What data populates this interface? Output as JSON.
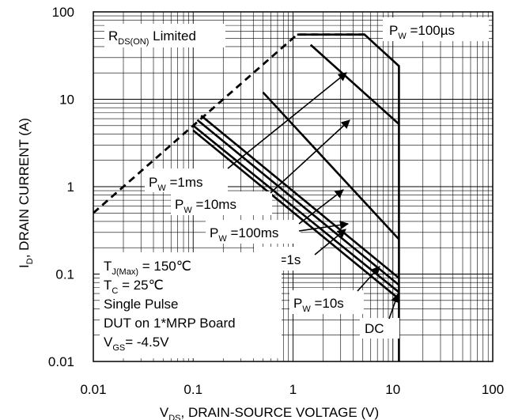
{
  "chart_data": {
    "type": "line",
    "x_scale": "log",
    "y_scale": "log",
    "xlim": [
      0.01,
      100
    ],
    "ylim": [
      0.01,
      100
    ],
    "grid": true,
    "x_ticks": [
      "0.01",
      "0.1",
      "1",
      "10",
      "100"
    ],
    "y_ticks": [
      "0.01",
      "0.1",
      "1",
      "10",
      "100"
    ],
    "xlabel": {
      "main": "V",
      "sub": "DS",
      "rest": ", DRAIN-SOURCE VOLTAGE (V)"
    },
    "ylabel": {
      "main": "I",
      "sub": "D",
      "rest": ", DRAIN CURRENT (A)"
    },
    "rds_label": {
      "main": "R",
      "sub": "DS(ON)",
      "rest": " Limited"
    },
    "conditions": [
      {
        "main": "T",
        "sub": "J(Max)",
        "rest": " = 150℃"
      },
      {
        "main": "T",
        "sub": "C",
        "rest": " = 25℃"
      },
      {
        "main": "Single Pulse",
        "sub": "",
        "rest": ""
      },
      {
        "main": "DUT on 1*MRP Board",
        "sub": "",
        "rest": ""
      },
      {
        "main": "V",
        "sub": "GS",
        "rest": "= -4.5V"
      }
    ],
    "limit_line": {
      "dashed": true,
      "x": [
        0.01,
        1.1,
        5.2
      ],
      "y": [
        0.5,
        55,
        55
      ]
    },
    "series": [
      {
        "name": "P_W=100µs",
        "label": {
          "main": "P",
          "sub": "W",
          "rest": " =100µs"
        },
        "x": [
          1.1,
          5.2,
          11.5,
          11.5
        ],
        "y": [
          55,
          55,
          24,
          0.01
        ]
      },
      {
        "name": "P_W=1ms",
        "label": {
          "main": "P",
          "sub": "W",
          "rest": " =1ms"
        },
        "x": [
          1.5,
          11.5
        ],
        "y": [
          42,
          5.2
        ]
      },
      {
        "name": "P_W=10ms",
        "label": {
          "main": "P",
          "sub": "W",
          "rest": " =10ms"
        },
        "x": [
          0.5,
          11.5
        ],
        "y": [
          12,
          0.25
        ]
      },
      {
        "name": "P_W=100ms",
        "label": {
          "main": "P",
          "sub": "W",
          "rest": " =100ms"
        },
        "x": [
          0.12,
          11.5
        ],
        "y": [
          6.5,
          0.09
        ]
      },
      {
        "name": "P_W=1s",
        "label": {
          "main": "P",
          "sub": "W",
          "rest": " =1s"
        },
        "x": [
          0.11,
          11.5
        ],
        "y": [
          5.8,
          0.075
        ]
      },
      {
        "name": "P_W=10s",
        "label": {
          "main": "P",
          "sub": "W",
          "rest": " =10s"
        },
        "x": [
          0.1,
          11.5
        ],
        "y": [
          5.0,
          0.062
        ]
      },
      {
        "name": "DC",
        "label": {
          "main": "DC",
          "sub": "",
          "rest": ""
        },
        "x": [
          0.1,
          11.5
        ],
        "y": [
          4.4,
          0.052
        ]
      }
    ]
  }
}
